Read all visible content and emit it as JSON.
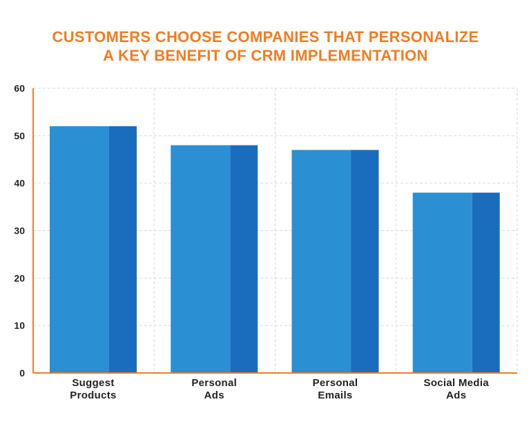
{
  "chart_data": {
    "type": "bar",
    "title": "CUSTOMERS CHOOSE COMPANIES THAT PERSONALIZE",
    "subtitle": "A KEY BENEFIT OF CRM IMPLEMENTATION",
    "categories": [
      [
        "Suggest",
        "Products"
      ],
      [
        "Personal",
        "Ads"
      ],
      [
        "Personal",
        "Emails"
      ],
      [
        "Social Media",
        "Ads"
      ]
    ],
    "values": [
      52,
      48,
      47,
      38
    ],
    "ylim": [
      0,
      60
    ],
    "yticks": [
      0,
      10,
      20,
      30,
      40,
      50,
      60
    ],
    "xlabel": "",
    "ylabel": "",
    "grid": true,
    "legend": "none"
  },
  "colors": {
    "title": "#f47b20",
    "axis": "#f47b20",
    "bar_front": "#2b8fd4",
    "bar_side": "#1a6dbd",
    "grid": "#d9d9d9",
    "text": "#222222"
  }
}
